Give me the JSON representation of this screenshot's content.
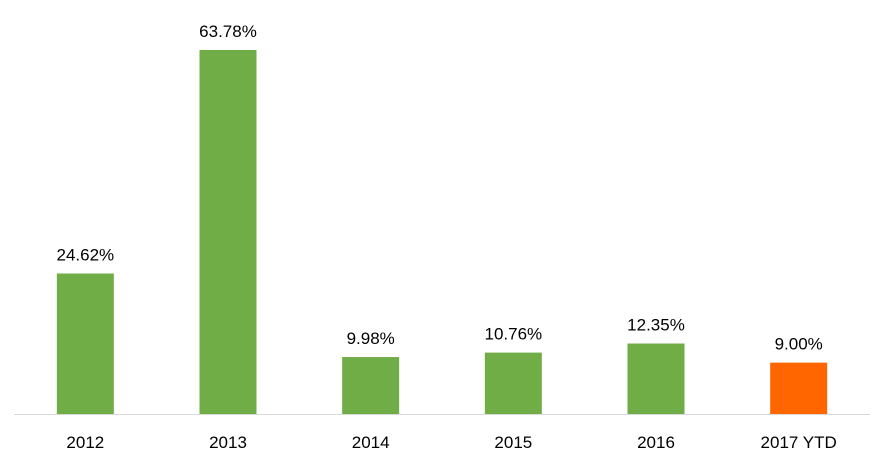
{
  "chart_data": {
    "type": "bar",
    "categories": [
      "2012",
      "2013",
      "2014",
      "2015",
      "2016",
      "2017 YTD"
    ],
    "values": [
      24.62,
      63.78,
      9.98,
      10.76,
      12.35,
      9.0
    ],
    "value_labels": [
      "24.62%",
      "63.78%",
      "9.98%",
      "10.76%",
      "12.35%",
      "9.00%"
    ],
    "bar_colors": [
      "#70ad47",
      "#70ad47",
      "#70ad47",
      "#70ad47",
      "#70ad47",
      "#ff6600"
    ],
    "title": "",
    "xlabel": "",
    "ylabel": "",
    "ylim": [
      0,
      63.78
    ],
    "grid": false,
    "legend": "none",
    "y_axis_visible": false
  }
}
